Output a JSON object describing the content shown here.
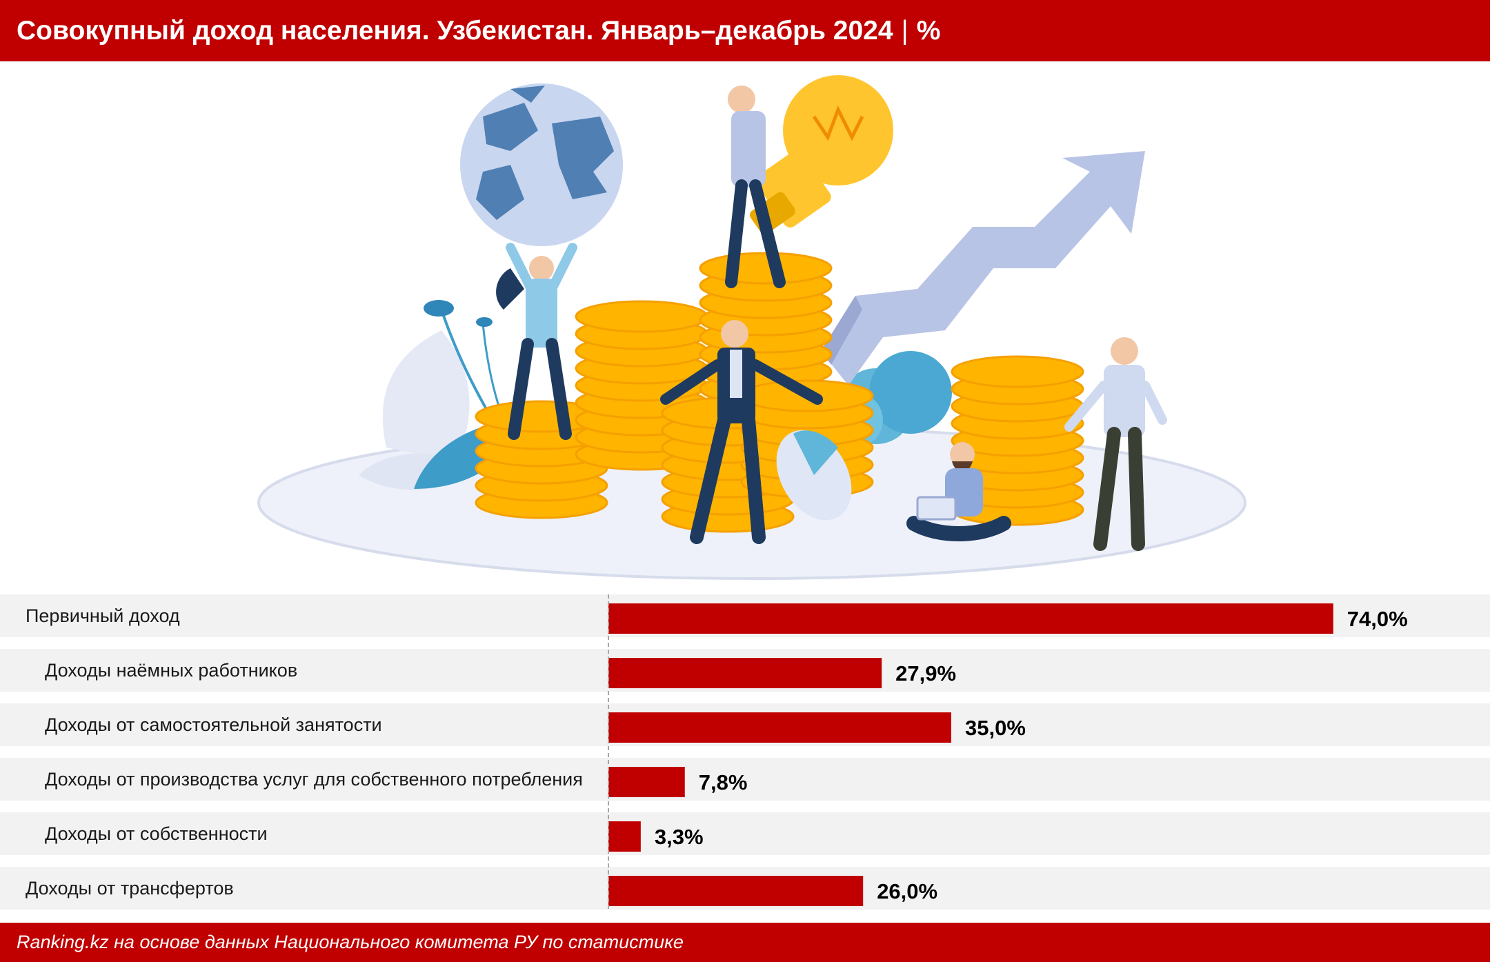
{
  "header": {
    "title": "Совокупный доход населения. Узбекистан. Январь–декабрь 2024",
    "separator": "|",
    "unit": "%"
  },
  "footer": {
    "source": "Ranking.kz на основе данных Национального комитета РУ по статистике"
  },
  "colors": {
    "accent": "#c00000",
    "bar": "#c00000",
    "row_band": "#f2f2f2",
    "coin": "#ffb400",
    "arrow": "#b8c4e6",
    "globe": "#c9d6f0"
  },
  "illustration": {
    "icons": [
      "globe-icon",
      "lightbulb-icon",
      "coin-stack-icon",
      "growth-arrow-icon",
      "businessman-icon",
      "laptop-icon",
      "pie-chart-icon"
    ]
  },
  "chart_data": {
    "type": "bar",
    "orientation": "horizontal",
    "categories": [
      "Первичный доход",
      "Доходы наёмных работников",
      "Доходы от самостоятельной занятости",
      "Доходы от производства услуг для собственного потребления",
      "Доходы от собственности",
      "Доходы от трансфертов"
    ],
    "indent": [
      false,
      true,
      true,
      true,
      true,
      false
    ],
    "values": [
      74.0,
      27.9,
      35.0,
      7.8,
      3.3,
      26.0
    ],
    "value_labels": [
      "74,0%",
      "27,9%",
      "35,0%",
      "7,8%",
      "3,3%",
      "26,0%"
    ],
    "unit": "%",
    "xlim": [
      0,
      100
    ],
    "grid": false,
    "legend": "none"
  }
}
